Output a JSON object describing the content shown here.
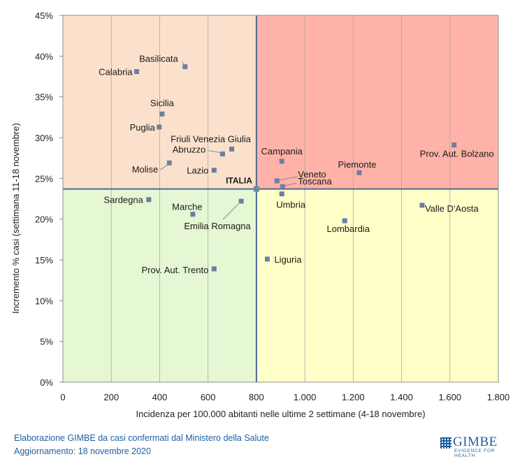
{
  "chart_data": {
    "type": "scatter",
    "xlabel": "Incidenza per 100.000  abitanti nelle ultime 2 settimane (4-18 novembre)",
    "ylabel": "Incremento % casi (settimana 11-18 novembre)",
    "xlim": [
      0,
      1800
    ],
    "ylim": [
      0,
      45
    ],
    "x_ticks": [
      "0",
      "200",
      "400",
      "600",
      "800",
      "1.000",
      "1.200",
      "1.400",
      "1.600",
      "1.800"
    ],
    "y_ticks": [
      "0%",
      "5%",
      "10%",
      "15%",
      "20%",
      "25%",
      "30%",
      "35%",
      "40%",
      "45%"
    ],
    "grid": "vertical",
    "reference": {
      "label": "ITALIA",
      "x": 800,
      "y": 23.7
    },
    "quadrant_colors": {
      "top_left": "#fbe1cc",
      "top_right": "#ffb3a8",
      "bottom_left": "#e6f7d4",
      "bottom_right": "#ffffc8"
    },
    "marker_color": "#6e7da3",
    "points": [
      {
        "label": "Calabria",
        "x": 305,
        "y": 38.1
      },
      {
        "label": "Basilicata",
        "x": 505,
        "y": 38.7
      },
      {
        "label": "Sicilia",
        "x": 410,
        "y": 32.9
      },
      {
        "label": "Puglia",
        "x": 398,
        "y": 31.3
      },
      {
        "label": "Friuli Venezia Giulia",
        "x": 698,
        "y": 28.6
      },
      {
        "label": "Abruzzo",
        "x": 660,
        "y": 28.0
      },
      {
        "label": "Molise",
        "x": 440,
        "y": 26.9
      },
      {
        "label": "Lazio",
        "x": 625,
        "y": 26.0
      },
      {
        "label": "Campania",
        "x": 905,
        "y": 27.1
      },
      {
        "label": "Prov. Aut. Bolzano",
        "x": 1617,
        "y": 29.1
      },
      {
        "label": "Piemonte",
        "x": 1225,
        "y": 25.7
      },
      {
        "label": "Veneto",
        "x": 885,
        "y": 24.7
      },
      {
        "label": "Toscana",
        "x": 908,
        "y": 24.0
      },
      {
        "label": "Umbria",
        "x": 905,
        "y": 23.1
      },
      {
        "label": "Sardegna",
        "x": 355,
        "y": 22.4
      },
      {
        "label": "Emilia Romagna",
        "x": 737,
        "y": 22.2
      },
      {
        "label": "Marche",
        "x": 537,
        "y": 20.6
      },
      {
        "label": "Valle D'Aosta",
        "x": 1485,
        "y": 21.7
      },
      {
        "label": "Lombardia",
        "x": 1165,
        "y": 19.8
      },
      {
        "label": "Liguria",
        "x": 845,
        "y": 15.1
      },
      {
        "label": "Prov. Aut. Trento",
        "x": 625,
        "y": 13.9
      }
    ]
  },
  "footer": {
    "line1": "Elaborazione GIMBE da casi confermati dal Ministero della Salute",
    "line2": "Aggiornamento: 18 novembre 2020"
  },
  "logo": {
    "word": "GIMBE",
    "tagline": "EVIDENCE FOR HEALTH"
  }
}
